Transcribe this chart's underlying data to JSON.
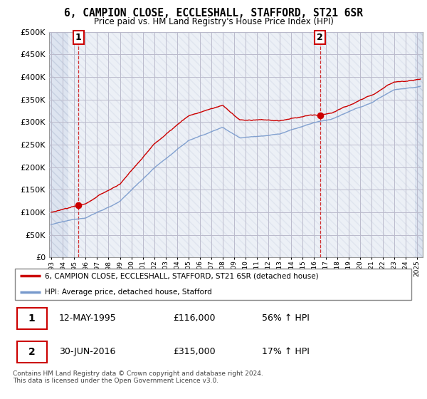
{
  "title": "6, CAMPION CLOSE, ECCLESHALL, STAFFORD, ST21 6SR",
  "subtitle": "Price paid vs. HM Land Registry's House Price Index (HPI)",
  "ylim": [
    0,
    500000
  ],
  "xlim_start": 1992.8,
  "xlim_end": 2025.5,
  "sale1_date": 1995.36,
  "sale1_price": 116000,
  "sale2_date": 2016.5,
  "sale2_price": 315000,
  "legend_line1": "6, CAMPION CLOSE, ECCLESHALL, STAFFORD, ST21 6SR (detached house)",
  "legend_line2": "HPI: Average price, detached house, Stafford",
  "footnote": "Contains HM Land Registry data © Crown copyright and database right 2024.\nThis data is licensed under the Open Government Licence v3.0.",
  "line_color_red": "#cc0000",
  "line_color_blue": "#7799cc",
  "bg_color": "#dde4f0",
  "grid_color": "#bbbbcc"
}
